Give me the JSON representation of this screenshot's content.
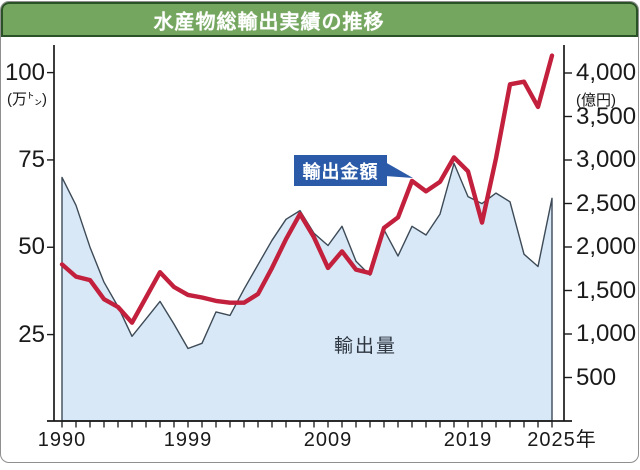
{
  "title": "水産物総輸出実績の推移",
  "annotations": {
    "value_label": "輸出金額",
    "volume_label": "輸出量"
  },
  "left_axis": {
    "unit_label": "(万㌧)",
    "ticks": [
      100,
      75,
      50,
      25
    ]
  },
  "right_axis": {
    "unit_label": "(億円)",
    "ticks": [
      "4,000",
      "3,500",
      "3,000",
      "2,500",
      "2,000",
      "1,500",
      "1,000",
      "500"
    ]
  },
  "x_axis": {
    "labels": [
      "1990",
      "1999",
      "2009",
      "2019",
      "2025年"
    ]
  },
  "colors": {
    "header_green": "#74a65f",
    "header_border": "#2b5226",
    "value_line_red": "#c2203c",
    "volume_area_fill": "#d9e8f6",
    "volume_area_outline": "#3d4a57",
    "callout_blue": "#2a5aa8",
    "axis_ink": "#1a1a1a",
    "frame_gray": "#8f8f8f"
  },
  "chart_data": {
    "type": "area",
    "title": "水産物総輸出実績の推移",
    "start_year": 1990,
    "end_year": 2025,
    "x": [
      1990,
      1991,
      1992,
      1993,
      1994,
      1995,
      1996,
      1997,
      1998,
      1999,
      2000,
      2001,
      2002,
      2003,
      2004,
      2005,
      2006,
      2007,
      2008,
      2009,
      2010,
      2011,
      2012,
      2013,
      2014,
      2015,
      2016,
      2017,
      2018,
      2019,
      2020,
      2021,
      2022,
      2023,
      2024,
      2025
    ],
    "series": [
      {
        "name": "輸出量",
        "style": "area",
        "axis": "left",
        "unit": "万トン",
        "values": [
          70,
          62,
          50,
          40,
          33,
          24.5,
          29.5,
          34.5,
          28,
          21,
          22.5,
          31.5,
          30.5,
          38,
          45,
          52,
          58,
          60.5,
          54,
          50.5,
          56,
          46,
          42,
          55,
          47.5,
          56,
          53.5,
          59.5,
          74,
          64.5,
          62.5,
          65.5,
          63,
          48,
          44.5,
          64
        ]
      },
      {
        "name": "輸出金額",
        "style": "line",
        "axis": "right",
        "unit": "億円",
        "values": [
          1800,
          1660,
          1620,
          1400,
          1310,
          1130,
          1420,
          1710,
          1540,
          1450,
          1420,
          1380,
          1360,
          1360,
          1460,
          1760,
          2090,
          2380,
          2110,
          1760,
          1950,
          1740,
          1700,
          2220,
          2340,
          2760,
          2640,
          2750,
          3030,
          2870,
          2280,
          3020,
          3870,
          3900,
          3610,
          4200
        ]
      }
    ],
    "left_ylim": [
      0,
      108
    ],
    "right_ylim": [
      0,
      4320
    ],
    "grid": false,
    "legend_position": "annotations-on-plot"
  }
}
